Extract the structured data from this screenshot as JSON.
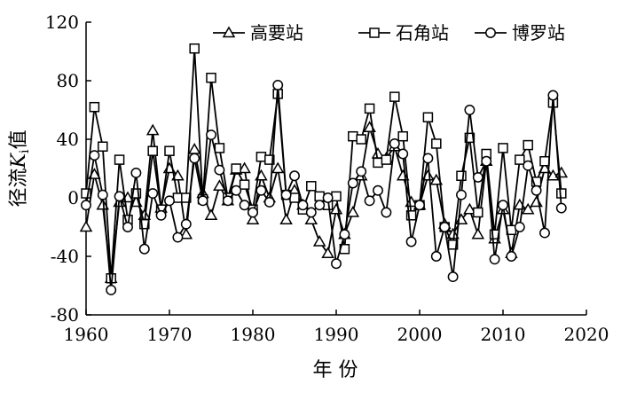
{
  "chart_data": {
    "type": "line",
    "title": "",
    "xlabel": "年 份",
    "ylabel_prefix": "径流",
    "ylabel_var": "K",
    "ylabel_sub": "i",
    "ylabel_suffix": "值",
    "xlim": [
      1960,
      2020
    ],
    "ylim": [
      -80,
      120
    ],
    "xticks": [
      1960,
      1970,
      1980,
      1990,
      2000,
      2010,
      2020
    ],
    "yticks": [
      -80,
      -40,
      0,
      40,
      80,
      120
    ],
    "grid": false,
    "legend_position": "top-right",
    "x": [
      1960,
      1961,
      1962,
      1963,
      1964,
      1965,
      1966,
      1967,
      1968,
      1969,
      1970,
      1971,
      1972,
      1973,
      1974,
      1975,
      1976,
      1977,
      1978,
      1979,
      1980,
      1981,
      1982,
      1983,
      1984,
      1985,
      1986,
      1987,
      1988,
      1989,
      1990,
      1991,
      1992,
      1993,
      1994,
      1995,
      1996,
      1997,
      1998,
      1999,
      2000,
      2001,
      2002,
      2003,
      2004,
      2005,
      2006,
      2007,
      2008,
      2009,
      2010,
      2011,
      2012,
      2013,
      2014,
      2015,
      2016,
      2017
    ],
    "series": [
      {
        "name": "高要站",
        "marker": "triangle",
        "values": [
          -20,
          16,
          -5,
          -55,
          -3,
          0,
          -3,
          -12,
          46,
          -7,
          20,
          15,
          -25,
          33,
          3,
          -12,
          8,
          -2,
          19,
          20,
          -15,
          15,
          0,
          20,
          -15,
          5,
          -5,
          -15,
          -30,
          -38,
          -8,
          -25,
          -10,
          15,
          48,
          30,
          27,
          35,
          15,
          -3,
          -5,
          15,
          12,
          -18,
          -25,
          -15,
          -8,
          -25,
          25,
          -28,
          -8,
          -38,
          -5,
          -8,
          -3,
          20,
          15,
          17
        ]
      },
      {
        "name": "石角站",
        "marker": "square",
        "values": [
          3,
          62,
          35,
          -55,
          26,
          -15,
          3,
          -18,
          32,
          -8,
          32,
          0,
          0,
          102,
          -1,
          82,
          34,
          0,
          20,
          9,
          -8,
          28,
          26,
          71,
          2,
          0,
          -8,
          8,
          1,
          -5,
          1,
          -35,
          42,
          40,
          61,
          24,
          26,
          69,
          42,
          -12,
          -5,
          55,
          37,
          -20,
          -32,
          15,
          41,
          -10,
          30,
          -25,
          34,
          -22,
          26,
          36,
          11,
          25,
          65,
          3
        ]
      },
      {
        "name": "博罗站",
        "marker": "circle",
        "values": [
          -5,
          29,
          2,
          -63,
          1,
          -20,
          17,
          -35,
          3,
          -12,
          -2,
          -27,
          -18,
          27,
          -2,
          43,
          19,
          -2,
          5,
          -5,
          -10,
          5,
          -3,
          77,
          2,
          15,
          -5,
          -10,
          -5,
          0,
          -45,
          -25,
          10,
          18,
          -2,
          5,
          -10,
          37,
          30,
          -30,
          -5,
          27,
          -40,
          -20,
          -54,
          2,
          60,
          14,
          25,
          -42,
          -5,
          -40,
          -20,
          22,
          5,
          -24,
          70,
          -7
        ]
      }
    ]
  }
}
